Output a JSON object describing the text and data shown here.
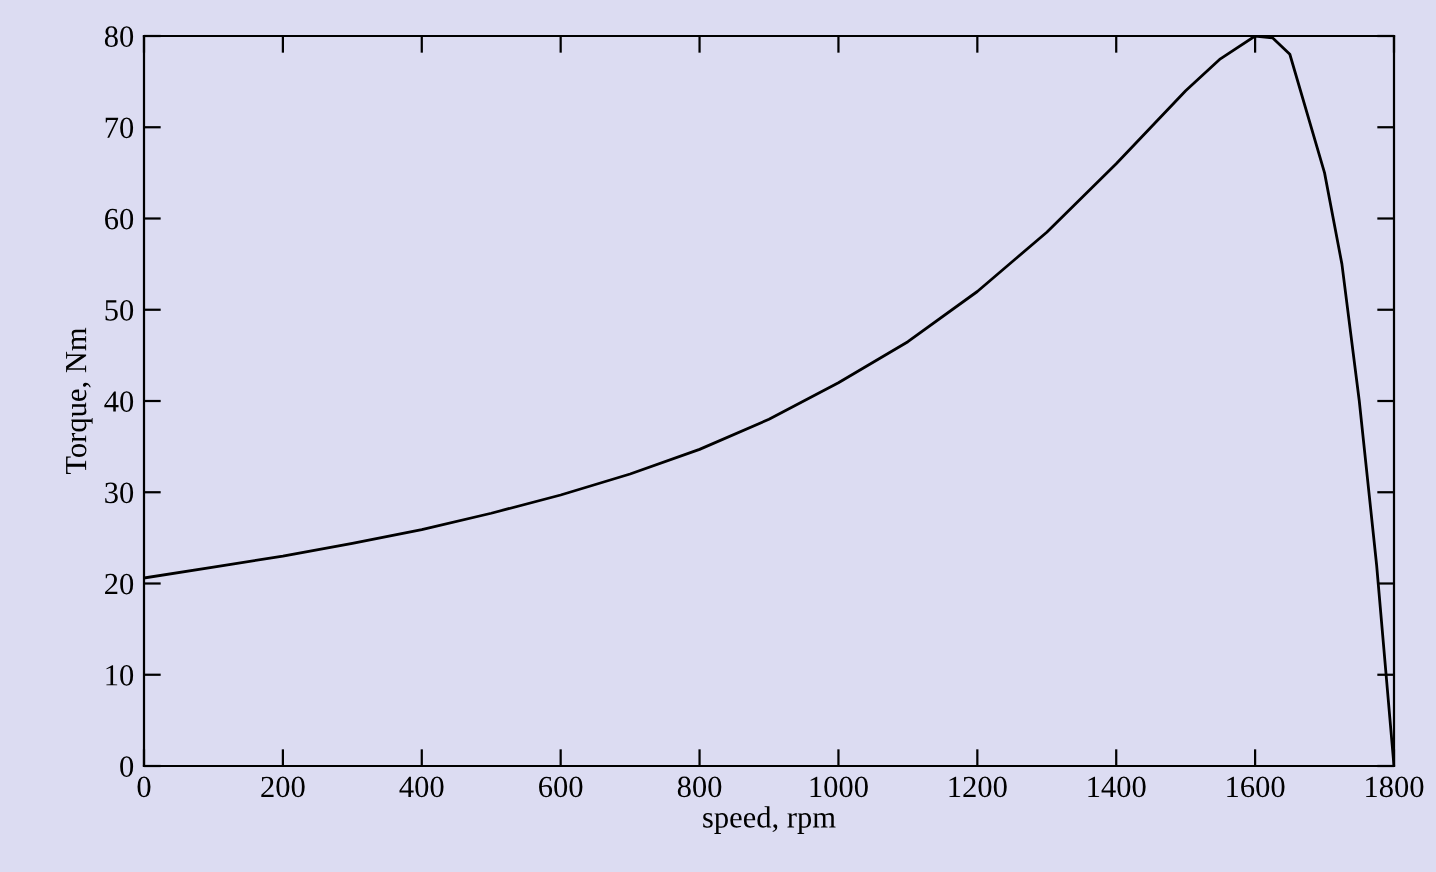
{
  "chart_data": {
    "type": "line",
    "xlabel": "speed, rpm",
    "ylabel": "Torque, Nm",
    "x": [
      0,
      100,
      200,
      300,
      400,
      500,
      600,
      700,
      800,
      900,
      1000,
      1100,
      1200,
      1300,
      1400,
      1450,
      1500,
      1550,
      1600,
      1625,
      1650,
      1700,
      1725,
      1750,
      1775,
      1800
    ],
    "series": [
      {
        "color": "#000000",
        "values": [
          20.6,
          21.8,
          23,
          24.4,
          25.9,
          27.7,
          29.7,
          32,
          34.7,
          38,
          42,
          46.5,
          52,
          58.5,
          66,
          70,
          74,
          77.5,
          80,
          79.8,
          78,
          65,
          55,
          40,
          22,
          0
        ]
      }
    ],
    "xlim": [
      0,
      1800
    ],
    "xticks": [
      0,
      200,
      400,
      600,
      800,
      1000,
      1200,
      1400,
      1600,
      1800
    ],
    "ylim": [
      0,
      80
    ],
    "yticks": [
      0,
      10,
      20,
      30,
      40,
      50,
      60,
      70,
      80
    ],
    "grid": false,
    "legend": false,
    "marker": "none",
    "line_style": "solid"
  }
}
